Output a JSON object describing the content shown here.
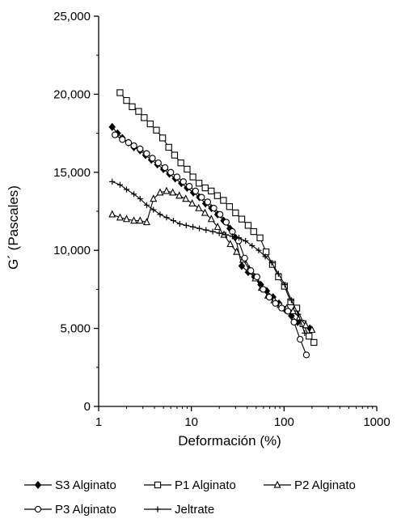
{
  "chart_data": {
    "type": "line",
    "title": "",
    "xlabel": "Deformación (%)",
    "ylabel": "G´ (Pascales)",
    "x_scale": "log",
    "xlim": [
      1,
      1000
    ],
    "ylim": [
      0,
      25000
    ],
    "x_ticks": [
      1,
      10,
      100,
      1000
    ],
    "x_tick_labels": [
      "1",
      "10",
      "100",
      "1000"
    ],
    "y_ticks": [
      0,
      5000,
      10000,
      15000,
      20000,
      25000
    ],
    "y_tick_labels": [
      "0",
      "5,000",
      "10,000",
      "15,000",
      "20,000",
      "25,000"
    ],
    "grid": false,
    "legend_position": "bottom",
    "line_color": "#000000",
    "series": [
      {
        "name": "S3 Alginato",
        "marker": "diamond",
        "x": [
          1.4,
          1.6,
          1.8,
          2.1,
          2.4,
          2.8,
          3.2,
          3.7,
          4.3,
          5.0,
          5.8,
          6.7,
          7.8,
          9.0,
          10.5,
          12.2,
          14.2,
          16.5,
          19.2,
          22.3,
          26,
          30,
          35,
          41,
          48,
          56,
          65,
          76,
          88,
          103,
          120,
          140,
          163,
          190
        ],
        "y": [
          17900,
          17500,
          17200,
          16900,
          16600,
          16400,
          16100,
          15800,
          15500,
          15200,
          14900,
          14600,
          14300,
          14000,
          13700,
          13400,
          13000,
          12700,
          12300,
          11900,
          11400,
          10800,
          9000,
          8600,
          8300,
          7800,
          7400,
          7000,
          6600,
          6200,
          5800,
          5400,
          5300,
          5000
        ]
      },
      {
        "name": "P1 Alginato",
        "marker": "square",
        "x": [
          1.7,
          2.0,
          2.3,
          2.7,
          3.1,
          3.6,
          4.2,
          4.9,
          5.7,
          6.6,
          7.7,
          9.0,
          10.4,
          12.1,
          14.1,
          16.4,
          19.1,
          22.2,
          25.8,
          30,
          35,
          41,
          47,
          55,
          64,
          75,
          87,
          101,
          118,
          137,
          160,
          186,
          210
        ],
        "y": [
          20100,
          19600,
          19200,
          18900,
          18500,
          18100,
          17700,
          17200,
          16600,
          16100,
          15600,
          15200,
          14700,
          14300,
          14000,
          13800,
          13500,
          13200,
          12800,
          12400,
          12000,
          11600,
          11200,
          10800,
          9900,
          9100,
          8300,
          7700,
          6700,
          6300,
          5300,
          4500,
          4100
        ]
      },
      {
        "name": "P2 Alginato",
        "marker": "triangle",
        "x": [
          1.4,
          1.7,
          2.0,
          2.4,
          2.8,
          3.3,
          3.9,
          4.6,
          5.4,
          6.3,
          7.4,
          8.7,
          10.2,
          12,
          14,
          16.4,
          19.2,
          22.5,
          26.3,
          30.8,
          36,
          42,
          49,
          57,
          67,
          78,
          91,
          107,
          125,
          146,
          171,
          200
        ],
        "y": [
          12300,
          12100,
          12000,
          11900,
          11900,
          11800,
          13300,
          13700,
          13800,
          13700,
          13500,
          13300,
          13000,
          12700,
          12400,
          12000,
          11500,
          11000,
          10400,
          9900,
          9400,
          8800,
          8200,
          7600,
          7100,
          6800,
          6500,
          6300,
          6100,
          5700,
          5200,
          4900
        ]
      },
      {
        "name": "P3 Alginato",
        "marker": "circle",
        "x": [
          1.5,
          1.8,
          2.1,
          2.4,
          2.8,
          3.3,
          3.8,
          4.4,
          5.2,
          6.0,
          7.0,
          8.2,
          9.5,
          11.1,
          12.9,
          15,
          17.5,
          20.4,
          23.8,
          27.7,
          32.3,
          37.6,
          43.8,
          51,
          59.5,
          69.3,
          80.8,
          94.2,
          110,
          128,
          149,
          174
        ],
        "y": [
          17400,
          17100,
          16900,
          16700,
          16500,
          16200,
          15900,
          15600,
          15300,
          15000,
          14700,
          14400,
          14100,
          13800,
          13400,
          13100,
          12700,
          12300,
          11800,
          11200,
          10600,
          9500,
          8700,
          8300,
          7500,
          7000,
          6600,
          6300,
          6100,
          5400,
          4300,
          3300
        ]
      },
      {
        "name": "Jeltrate",
        "marker": "plus",
        "x": [
          1.4,
          1.7,
          2.0,
          2.4,
          2.8,
          3.3,
          3.9,
          4.6,
          5.4,
          6.4,
          7.5,
          8.8,
          10.4,
          12.2,
          14.4,
          17,
          20,
          23.5,
          27.7,
          32.6,
          38.4,
          45.2,
          53.2,
          62.7,
          73.8,
          86.9,
          102,
          120,
          142,
          167
        ],
        "y": [
          14400,
          14200,
          13900,
          13600,
          13300,
          12900,
          12600,
          12300,
          12100,
          11900,
          11700,
          11600,
          11500,
          11400,
          11300,
          11200,
          11100,
          11000,
          10900,
          10800,
          10600,
          10300,
          10000,
          9600,
          9200,
          8500,
          7800,
          6800,
          5900,
          4700
        ]
      }
    ]
  }
}
